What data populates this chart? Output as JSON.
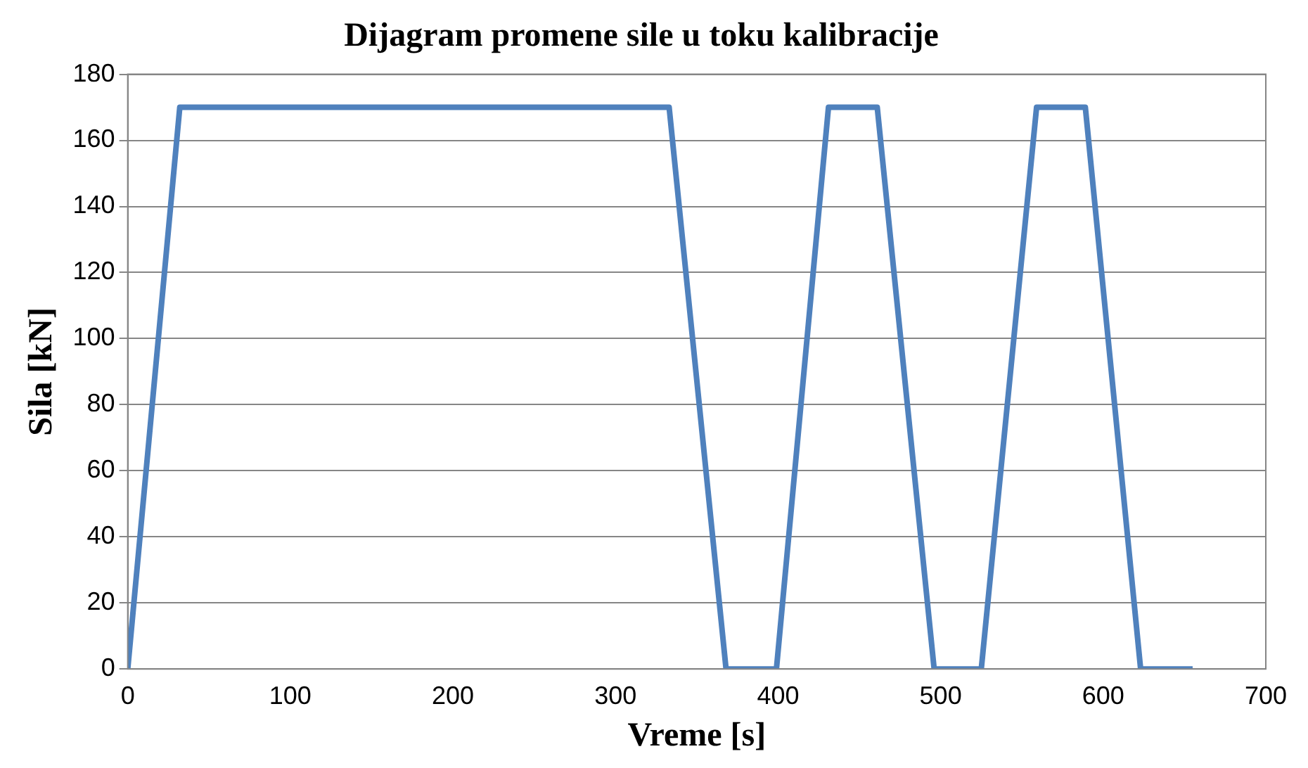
{
  "chart_data": {
    "type": "line",
    "title": "Dijagram promene sile u toku kalibracije",
    "xlabel": "Vreme [s]",
    "ylabel": "Sila [kN]",
    "series": [
      {
        "color": "#4f81bd",
        "x": [
          0,
          32,
          333,
          368,
          399,
          431,
          461,
          496,
          525,
          559,
          589,
          623,
          655
        ],
        "values": [
          0,
          170,
          170,
          0,
          0,
          170,
          170,
          0,
          0,
          170,
          170,
          0,
          0
        ]
      }
    ],
    "xlim": [
      0,
      700
    ],
    "xticks": [
      0,
      100,
      200,
      300,
      400,
      500,
      600,
      700
    ],
    "ylim": [
      0,
      180
    ],
    "yticks": [
      0,
      20,
      40,
      60,
      80,
      100,
      120,
      140,
      160,
      180
    ],
    "grid": "y",
    "legend": false,
    "marker": "none",
    "line_style": "solid"
  }
}
